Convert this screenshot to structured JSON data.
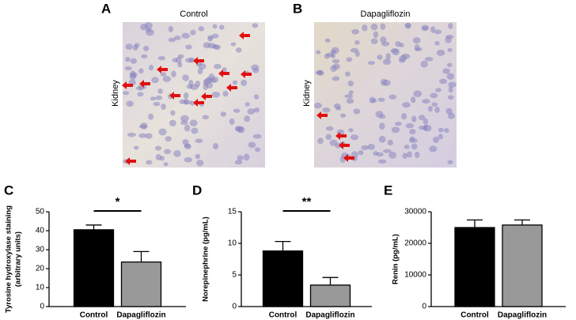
{
  "image_panels": [
    {
      "letter": "A",
      "title": "Control",
      "side_label": "Kidney"
    },
    {
      "letter": "B",
      "title": "Dapagliflozin",
      "side_label": "Kidney"
    }
  ],
  "chart_data": [
    {
      "type": "bar",
      "panel_label": "C",
      "y_label": [
        "Tyrosine hydroxylase staining",
        "(arbitrary units)"
      ],
      "categories": [
        "Control",
        "Dapagliflozin"
      ],
      "values": [
        40.5,
        23.5
      ],
      "errors": [
        2.5,
        5.5
      ],
      "colors": [
        "#000000",
        "#999999"
      ],
      "ylim": [
        0,
        50
      ],
      "yticks": [
        0,
        10,
        20,
        30,
        40,
        50
      ],
      "significance": "*"
    },
    {
      "type": "bar",
      "panel_label": "D",
      "y_label": [
        "Norepinephrine (pg/mL)"
      ],
      "categories": [
        "Control",
        "Dapagliflozin"
      ],
      "values": [
        8.8,
        3.4
      ],
      "errors": [
        1.5,
        1.2
      ],
      "colors": [
        "#000000",
        "#999999"
      ],
      "ylim": [
        0,
        15
      ],
      "yticks": [
        0,
        5,
        10,
        15
      ],
      "significance": "**"
    },
    {
      "type": "bar",
      "panel_label": "E",
      "y_label": [
        "Renin (pg/mL)"
      ],
      "categories": [
        "Control",
        "Dapagliflozin"
      ],
      "values": [
        25000,
        25800
      ],
      "errors": [
        2400,
        1600
      ],
      "colors": [
        "#000000",
        "#999999"
      ],
      "ylim": [
        0,
        30000
      ],
      "yticks": [
        0,
        10000,
        20000,
        30000
      ]
    }
  ]
}
